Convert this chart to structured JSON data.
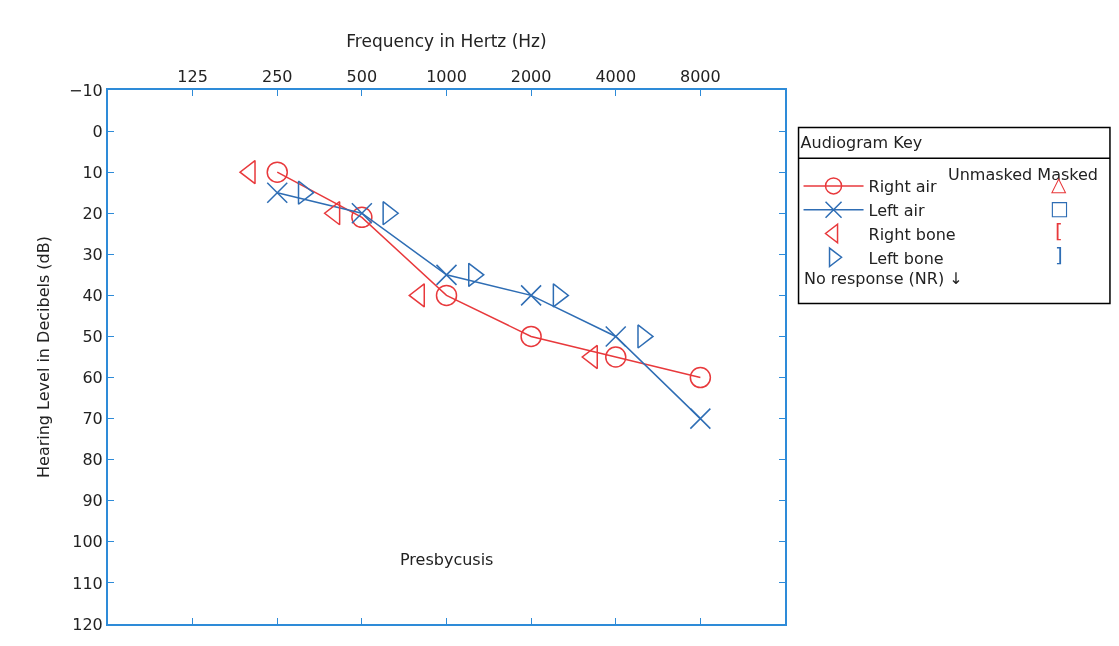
{
  "chart_data": {
    "type": "line",
    "xlabel": "Frequency in Hertz (Hz)",
    "ylabel": "Hearing Level in Decibels (dB)",
    "legend_title": "Audiogram Key",
    "log": "x",
    "xlim": [
      62.5,
      16000
    ],
    "xticks": [
      125,
      250,
      500,
      1000,
      2000,
      4000,
      8000
    ],
    "ylim": [
      120,
      -10
    ],
    "yticks": [
      -10,
      0,
      10,
      20,
      30,
      40,
      50,
      60,
      70,
      80,
      90,
      100,
      110,
      120
    ],
    "legend": "right",
    "series": [
      {
        "name": "Right air",
        "type": "line",
        "marker": "circle",
        "color": "#e8393c",
        "x": [
          250,
          500,
          1000,
          2000,
          4000,
          8000
        ],
        "values": [
          10,
          21,
          40,
          50,
          55,
          60
        ]
      },
      {
        "name": "Left air",
        "type": "line",
        "marker": "cross",
        "color": "#2e6db4",
        "x": [
          250,
          500,
          1000,
          2000,
          4000,
          8000
        ],
        "values": [
          15,
          20,
          35,
          40,
          50,
          70
        ]
      },
      {
        "name": "Right bone",
        "type": "scatter",
        "marker": "triangle-left",
        "color": "#e8393c",
        "x": [
          200,
          400,
          800,
          3300
        ],
        "values": [
          10,
          20,
          40,
          55
        ]
      },
      {
        "name": "Left bone",
        "type": "scatter",
        "marker": "triangle-right",
        "color": "#2e6db4",
        "x": [
          310,
          620,
          1250,
          2500,
          5000
        ],
        "values": [
          15,
          20,
          35,
          40,
          50
        ]
      }
    ],
    "annotations": [
      "Presbycusis",
      "Unmasked Masked",
      "△",
      "□",
      "[",
      "]",
      "No response (NR) ↓"
    ]
  }
}
